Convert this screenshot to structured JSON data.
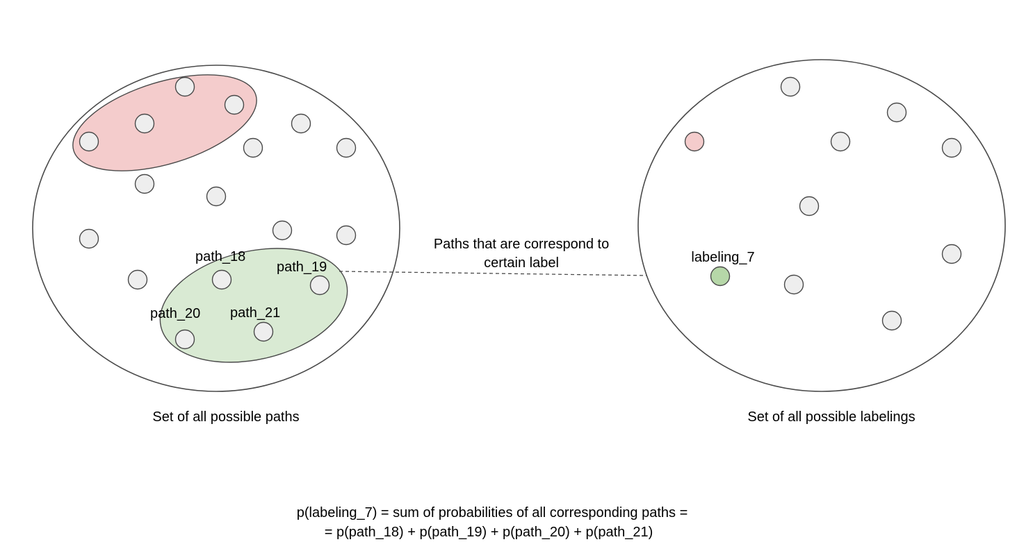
{
  "paths_set": {
    "caption": "Set of all possible paths",
    "node_labels": {
      "path_18": "path_18",
      "path_19": "path_19",
      "path_20": "path_20",
      "path_21": "path_21"
    }
  },
  "labelings_set": {
    "caption": "Set of all possible labelings",
    "highlighted_label": "labeling_7"
  },
  "connector": {
    "line1": "Paths that are correspond to",
    "line2": "certain label"
  },
  "formula": {
    "line1": "p(labeling_7) = sum of probabilities of all corresponding paths =",
    "line2": "= p(path_18) + p(path_19) + p(path_20) + p(path_21)"
  },
  "colors": {
    "red_group": "#f4cccc",
    "green_group": "#d9ead3",
    "green_node": "#b6d7a8",
    "node": "#eeeeee",
    "stroke": "#4a4a4a"
  }
}
